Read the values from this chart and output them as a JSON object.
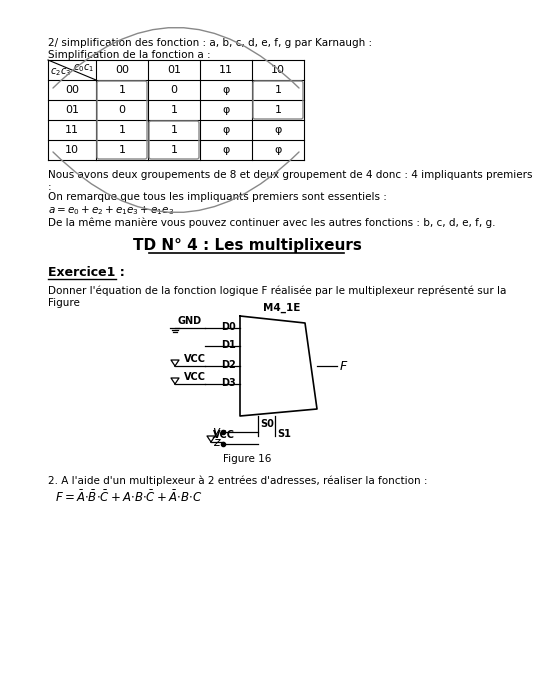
{
  "bg_color": "#ffffff",
  "text_color": "#000000",
  "title_section1": "2/ simplification des fonction : a, b, c, d, e, f, g par Karnaugh :",
  "title_section1b": "Simplification de la fonction a :",
  "karnaugh_rows": [
    [
      "00",
      "1",
      "0",
      "φ",
      "1"
    ],
    [
      "01",
      "0",
      "1",
      "φ",
      "1"
    ],
    [
      "11",
      "1",
      "1",
      "φ",
      "φ"
    ],
    [
      "10",
      "1",
      "1",
      "φ",
      "φ"
    ]
  ],
  "note1": "Nous avons deux groupements de 8 et deux groupement de 4 donc : 4 impliquants premiers",
  "note1b": ":",
  "note2": "On remarque que tous les impliquants premiers sont essentiels :",
  "note3": "De la même manière vous pouvez continuer avec les autres fonctions : b, c, d, e, f, g.",
  "title_td": "TD N° 4 : Les multiplixeurs",
  "exercice1_title": "Exercice1 :",
  "exercice1_text1": "Donner l'équation de la fonction logique F réalisée par le multiplexeur représenté sur la",
  "exercice1_text2": "Figure",
  "mux_label": "M4_1E",
  "mux_output": "F",
  "figure_label": "Figure 16",
  "exercise2_text": "2. A l'aide d'un multiplexeur à 2 entrées d'adresses, réaliser la fonction :"
}
